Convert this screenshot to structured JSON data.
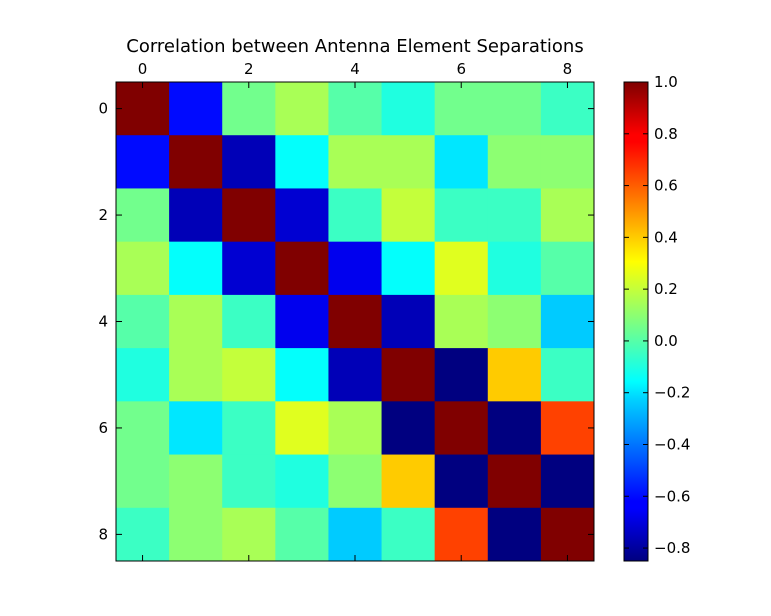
{
  "chart_data": {
    "type": "heatmap",
    "title": "Correlation between Antenna Element Separations",
    "xlabel": "",
    "ylabel": "",
    "x_tick_positions": [
      0,
      2,
      4,
      6,
      8
    ],
    "y_tick_positions": [
      0,
      2,
      4,
      6,
      8
    ],
    "x_tick_labels": [
      "0",
      "2",
      "4",
      "6",
      "8"
    ],
    "y_tick_labels": [
      "0",
      "2",
      "4",
      "6",
      "8"
    ],
    "x_axis_position": "top",
    "colormap": "jet",
    "vmin": -0.85,
    "vmax": 1.0,
    "colorbar_ticks": [
      1.0,
      0.8,
      0.6,
      0.4,
      0.2,
      0.0,
      -0.2,
      -0.4,
      -0.6,
      -0.8
    ],
    "colorbar_tick_labels": [
      "1.0",
      "0.8",
      "0.6",
      "0.4",
      "0.2",
      "0.0",
      "−0.2",
      "−0.4",
      "−0.6",
      "−0.8"
    ],
    "colorbar_placement": "right",
    "grid": false,
    "values": [
      [
        1.0,
        -0.6,
        0.05,
        0.15,
        0.0,
        -0.1,
        0.05,
        0.05,
        -0.05
      ],
      [
        -0.6,
        1.0,
        -0.75,
        -0.15,
        0.15,
        0.15,
        -0.2,
        0.1,
        0.1
      ],
      [
        0.05,
        -0.75,
        1.0,
        -0.7,
        -0.05,
        0.2,
        -0.05,
        -0.05,
        0.15
      ],
      [
        0.15,
        -0.15,
        -0.7,
        1.0,
        -0.65,
        -0.15,
        0.25,
        -0.1,
        0.0
      ],
      [
        0.0,
        0.15,
        -0.05,
        -0.65,
        1.0,
        -0.75,
        0.15,
        0.1,
        -0.25
      ],
      [
        -0.1,
        0.15,
        0.2,
        -0.15,
        -0.75,
        1.0,
        -0.85,
        0.4,
        -0.05
      ],
      [
        0.05,
        -0.2,
        -0.05,
        0.25,
        0.15,
        -0.85,
        1.0,
        -0.85,
        0.65
      ],
      [
        0.05,
        0.1,
        -0.05,
        -0.1,
        0.1,
        0.4,
        -0.85,
        1.0,
        -0.85
      ],
      [
        -0.05,
        0.1,
        0.15,
        0.0,
        -0.25,
        -0.05,
        0.65,
        -0.85,
        1.0
      ]
    ]
  }
}
